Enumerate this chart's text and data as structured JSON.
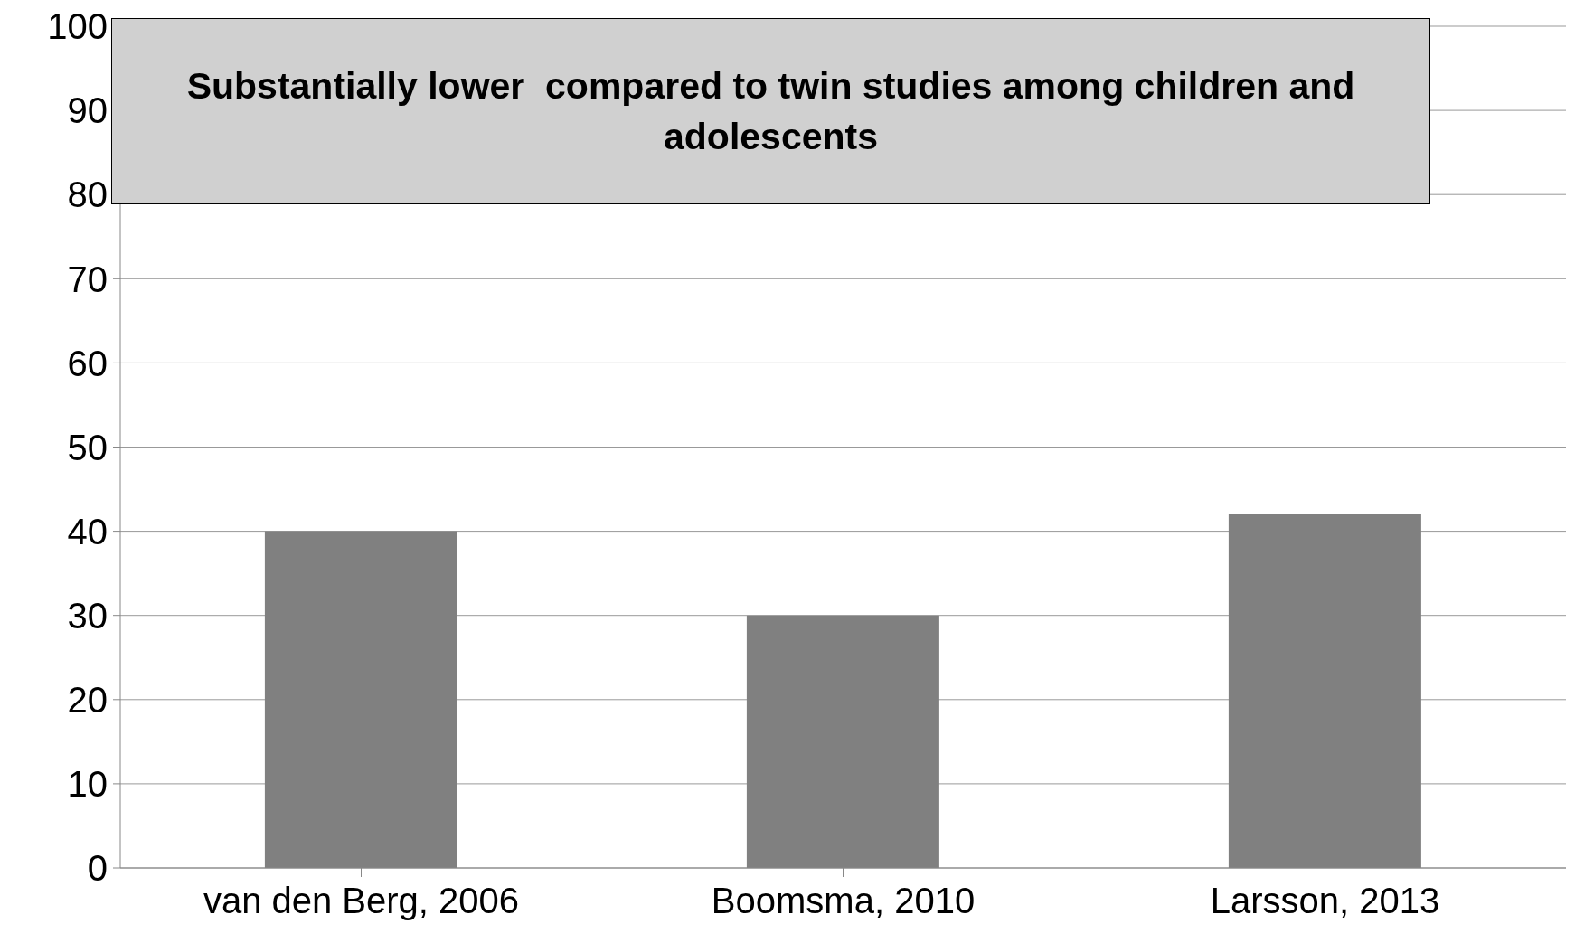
{
  "chart_data": {
    "type": "bar",
    "categories": [
      "van den Berg, 2006",
      "Boomsma, 2010",
      "Larsson, 2013"
    ],
    "values": [
      40,
      30,
      42
    ],
    "color": "#808080",
    "ylim": [
      0,
      100
    ],
    "yticks": [
      0,
      10,
      20,
      30,
      40,
      50,
      60,
      70,
      80,
      90,
      100
    ],
    "grid": "y",
    "annotations": [
      "Substantially lower  compared to twin studies among children and adolescents"
    ]
  }
}
